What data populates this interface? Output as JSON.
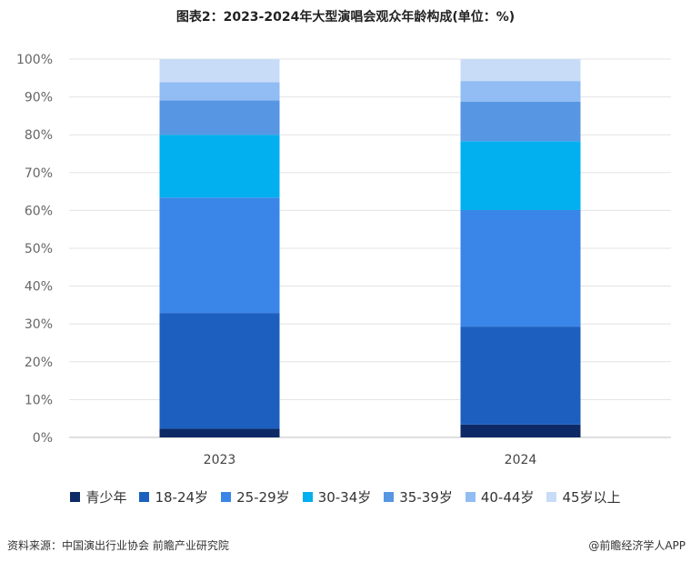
{
  "title": "图表2：2023-2024年大型演唱会观众年龄构成(单位：%)",
  "source": "资料来源：中国演出行业协会 前瞻产业研究院",
  "credit": "@前瞻经济学人APP",
  "chart_data": {
    "type": "bar",
    "stacked": true,
    "categories": [
      "2023",
      "2024"
    ],
    "ylim": [
      0,
      100
    ],
    "yticks": [
      "0%",
      "10%",
      "20%",
      "30%",
      "40%",
      "50%",
      "60%",
      "70%",
      "80%",
      "90%",
      "100%"
    ],
    "grid": true,
    "legend": "bottom",
    "series": [
      {
        "name": "青少年",
        "color": "#0d2a66",
        "values": [
          2.3,
          3.4
        ]
      },
      {
        "name": "18-24岁",
        "color": "#1c5fbf",
        "values": [
          30.6,
          25.9
        ]
      },
      {
        "name": "25-29岁",
        "color": "#3a86e8",
        "values": [
          30.5,
          30.8
        ]
      },
      {
        "name": "30-34岁",
        "color": "#02b0ef",
        "values": [
          16.6,
          18.2
        ]
      },
      {
        "name": "35-39岁",
        "color": "#5796e2",
        "values": [
          9.1,
          10.4
        ]
      },
      {
        "name": "40-44岁",
        "color": "#91bcf4",
        "values": [
          4.8,
          5.5
        ]
      },
      {
        "name": "45岁以上",
        "color": "#c8dcf8",
        "values": [
          6.1,
          5.8
        ]
      }
    ]
  }
}
